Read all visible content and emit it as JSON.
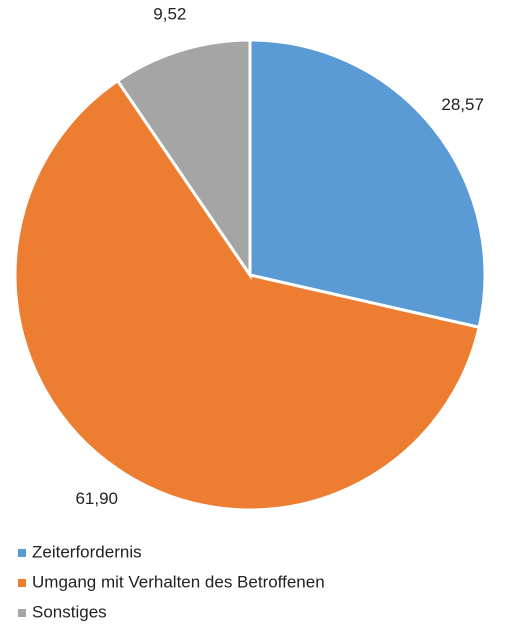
{
  "chart_data": {
    "type": "pie",
    "categories": [
      "Zeiterfordernis",
      "Umgang mit Verhalten des Betroffenen",
      "Sonstiges"
    ],
    "values": [
      28.57,
      61.9,
      9.52
    ],
    "value_labels": [
      "28,57",
      "61,90",
      "9,52"
    ],
    "colors": [
      "#5b9bd5",
      "#ed7d31",
      "#a5a5a5"
    ],
    "legend": "bottom"
  }
}
